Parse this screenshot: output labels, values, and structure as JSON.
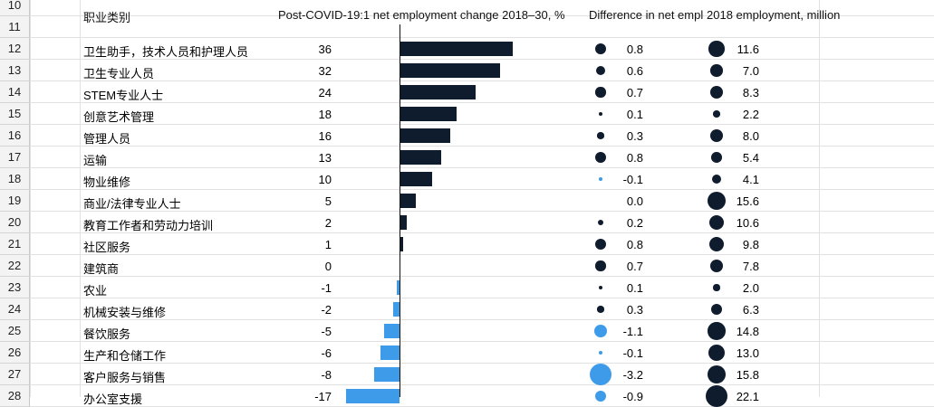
{
  "row_numbers": [
    "10",
    "11",
    "12",
    "13",
    "14",
    "15",
    "16",
    "17",
    "18",
    "19",
    "20",
    "21",
    "22",
    "23",
    "24",
    "25",
    "26",
    "27",
    "28"
  ],
  "headers": {
    "category": "职业类别",
    "change": "Post-COVID-19:1 net employment change 2018–30, %",
    "difference": "Difference in net empl",
    "employment": "2018 employment, million"
  },
  "colors": {
    "positive": "#0f1c2e",
    "negative": "#3d9be9"
  },
  "chart_data": {
    "type": "bar",
    "categories": [
      "卫生助手，技术人员和护理人员",
      "卫生专业人员",
      "STEM专业人士",
      "创意艺术管理",
      "管理人员",
      "运输",
      "物业维修",
      "商业/法律专业人士",
      "教育工作者和劳动力培训",
      "社区服务",
      "建筑商",
      "农业",
      "机械安装与维修",
      "餐饮服务",
      "生产和仓储工作",
      "客户服务与销售",
      "办公室支援"
    ],
    "series": [
      {
        "name": "Post-COVID-19:1 net employment change 2018–30, %",
        "values": [
          36,
          32,
          24,
          18,
          16,
          13,
          10,
          5,
          2,
          1,
          0,
          -1,
          -2,
          -5,
          -6,
          -8,
          -17
        ]
      },
      {
        "name": "Difference in net empl",
        "values": [
          0.8,
          0.6,
          0.7,
          0.1,
          0.3,
          0.8,
          -0.1,
          0.0,
          0.2,
          0.8,
          0.7,
          0.1,
          0.3,
          -1.1,
          -0.1,
          -3.2,
          -0.9
        ]
      },
      {
        "name": "2018 employment, million",
        "values": [
          11.6,
          7.0,
          8.3,
          2.2,
          8.0,
          5.4,
          4.1,
          15.6,
          10.6,
          9.8,
          7.8,
          2.0,
          6.3,
          14.8,
          13.0,
          15.8,
          22.1
        ]
      }
    ],
    "labels": {
      "change": [
        "36",
        "32",
        "24",
        "18",
        "16",
        "13",
        "10",
        "5",
        "2",
        "1",
        "0",
        "-1",
        "-2",
        "-5",
        "-6",
        "-8",
        "-17"
      ],
      "difference": [
        "0.8",
        "0.6",
        "0.7",
        "0.1",
        "0.3",
        "0.8",
        "-0.1",
        "0.0",
        "0.2",
        "0.8",
        "0.7",
        "0.1",
        "0.3",
        "-1.1",
        "-0.1",
        "-3.2",
        "-0.9"
      ],
      "employment": [
        "11.6",
        "7.0",
        "8.3",
        "2.2",
        "8.0",
        "5.4",
        "4.1",
        "15.6",
        "10.6",
        "9.8",
        "7.8",
        "2.0",
        "6.3",
        "14.8",
        "13.0",
        "15.8",
        "22.1"
      ]
    }
  }
}
